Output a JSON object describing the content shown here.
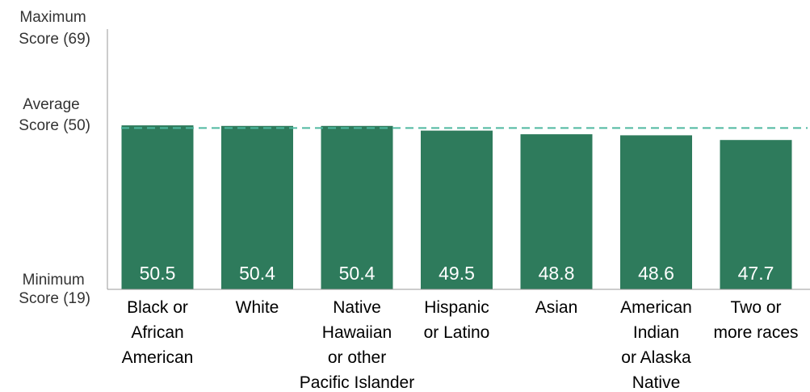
{
  "chart_data": {
    "type": "bar",
    "categories": [
      "Black or African American",
      "White",
      "Native Hawaiian or other Pacific Islander",
      "Hispanic or Latino",
      "Asian",
      "American Indian or Alaska Native",
      "Two or more races"
    ],
    "category_lines": [
      [
        "Black or",
        "African",
        "American"
      ],
      [
        "White"
      ],
      [
        "Native",
        "Hawaiian",
        "or other",
        "Pacific Islander"
      ],
      [
        "Hispanic",
        "or Latino"
      ],
      [
        "Asian"
      ],
      [
        "American",
        "Indian",
        "or Alaska",
        "Native"
      ],
      [
        "Two or",
        "more races"
      ]
    ],
    "values": [
      50.5,
      50.4,
      50.4,
      49.5,
      48.8,
      48.6,
      47.7
    ],
    "value_labels": [
      "50.5",
      "50.4",
      "50.4",
      "49.5",
      "48.8",
      "48.6",
      "47.7"
    ],
    "ylim": [
      19,
      69
    ],
    "y_labels": {
      "max": [
        "Maximum",
        "Score (69)"
      ],
      "avg": [
        "Average",
        "Score (50)"
      ],
      "min": [
        "Minimum",
        "Score (19)"
      ]
    },
    "reference_line": {
      "value": 50,
      "style": "dashed"
    },
    "bar_color": "#2e7b5c",
    "reference_color": "#4fb8a0",
    "grid": false
  }
}
